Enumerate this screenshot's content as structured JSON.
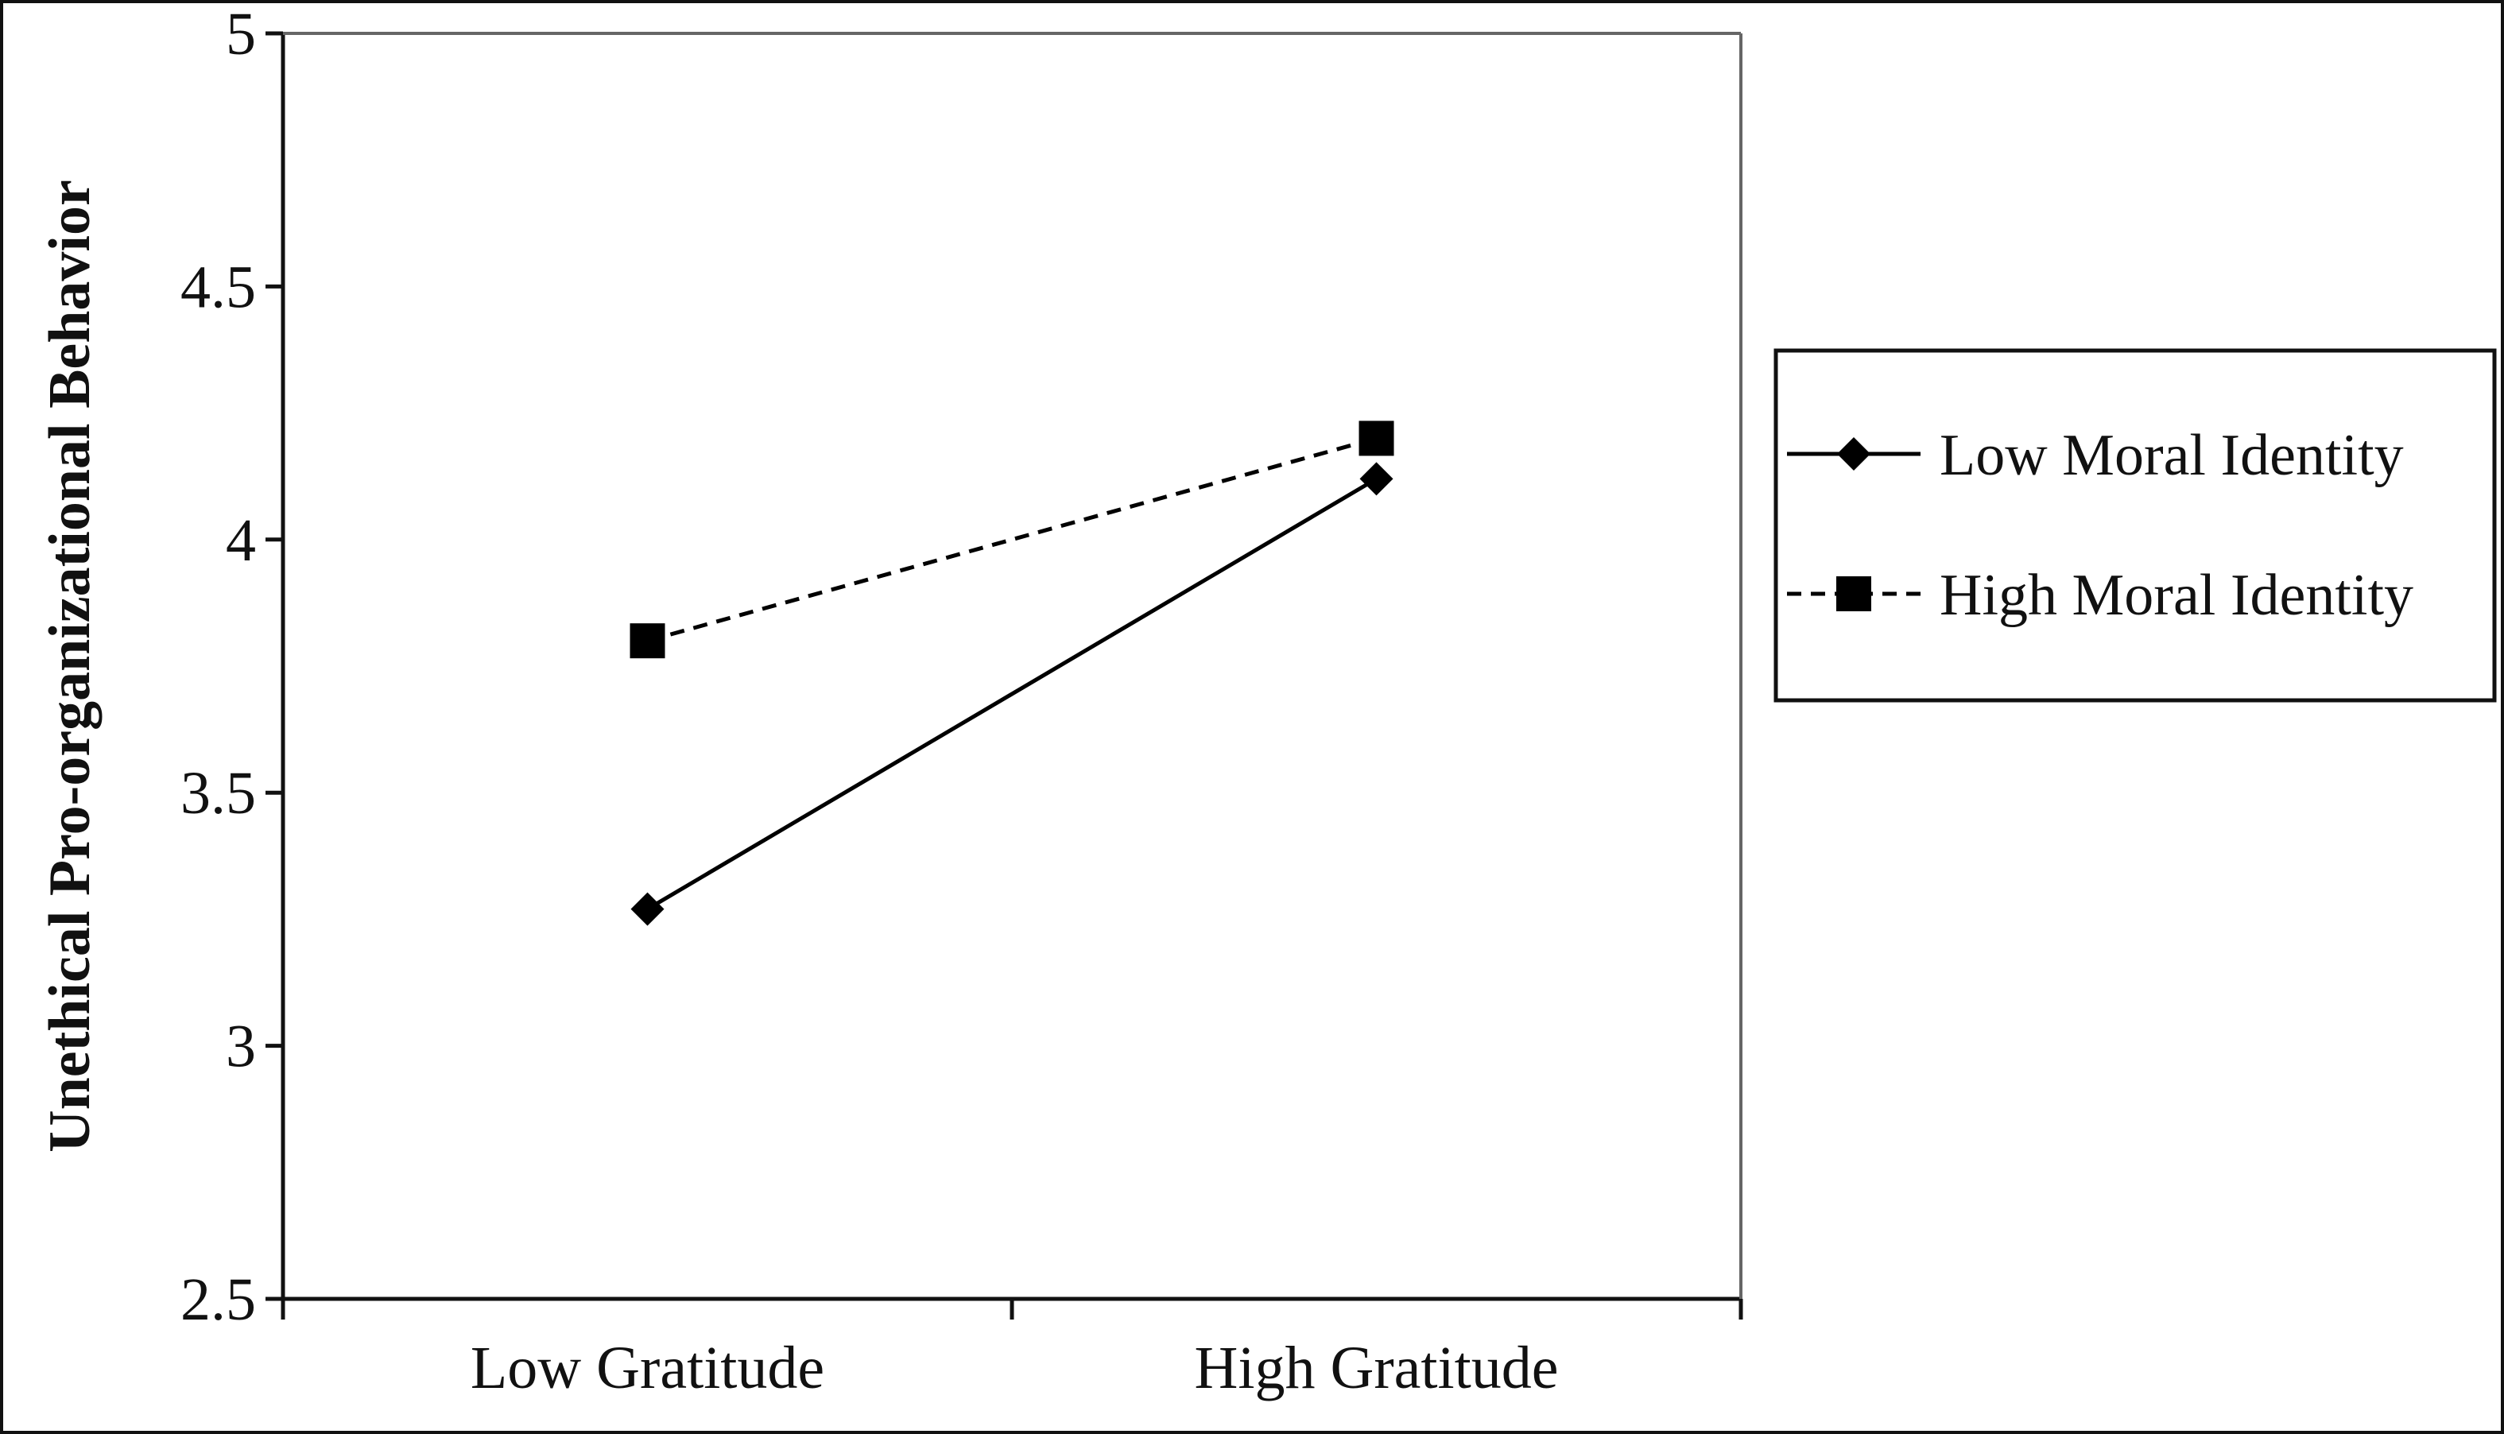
{
  "chart_data": {
    "type": "line",
    "title": "",
    "xlabel": "",
    "ylabel": "Unethical Pro-organizational Behavior",
    "categories": [
      "Low Gratitude",
      "High Gratitude"
    ],
    "ylim": [
      2.5,
      5
    ],
    "yticks": [
      "2.5",
      "3",
      "3.5",
      "4",
      "4.5",
      "5"
    ],
    "grid": false,
    "legend_position": "right",
    "series": [
      {
        "name": "Low Moral Identity",
        "values": [
          3.27,
          4.12
        ],
        "line_style": "solid",
        "marker": "diamond",
        "color": "#000000"
      },
      {
        "name": "High Moral Identity",
        "values": [
          3.8,
          4.2
        ],
        "line_style": "dashed",
        "marker": "square",
        "color": "#000000"
      }
    ]
  }
}
